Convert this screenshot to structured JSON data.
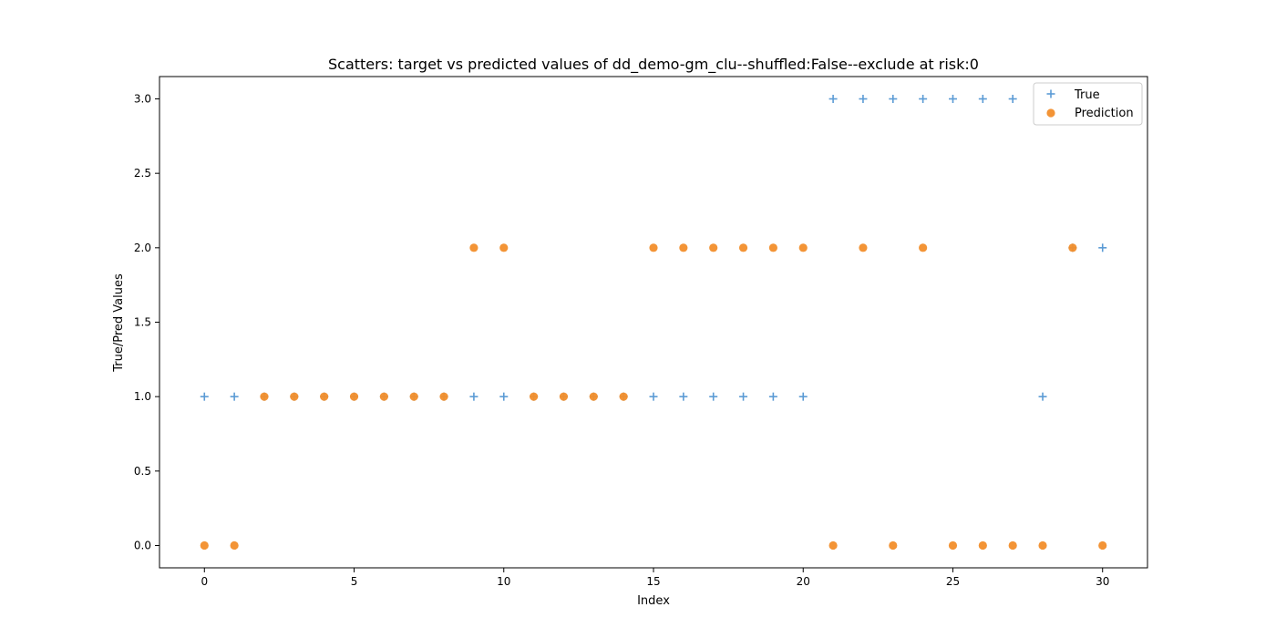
{
  "chart_data": {
    "type": "scatter",
    "title": "Scatters: target vs predicted values of dd_demo-gm_clu--shuffled:False--exclude at risk:0",
    "xlabel": "Index",
    "ylabel": "True/Pred Values",
    "xlim": [
      -1.5,
      31.5
    ],
    "ylim": [
      -0.15,
      3.15
    ],
    "x_ticks": [
      0,
      5,
      10,
      15,
      20,
      25,
      30
    ],
    "x_tick_labels": [
      "0",
      "5",
      "10",
      "15",
      "20",
      "25",
      "30"
    ],
    "y_ticks": [
      0.0,
      0.5,
      1.0,
      1.5,
      2.0,
      2.5,
      3.0
    ],
    "y_tick_labels": [
      "0.0",
      "0.5",
      "1.0",
      "1.5",
      "2.0",
      "2.5",
      "3.0"
    ],
    "grid": false,
    "legend_position": "top-right",
    "x": [
      0,
      1,
      2,
      3,
      4,
      5,
      6,
      7,
      8,
      9,
      10,
      11,
      12,
      13,
      14,
      15,
      16,
      17,
      18,
      19,
      20,
      21,
      22,
      23,
      24,
      25,
      26,
      27,
      28,
      29,
      30
    ],
    "series": [
      {
        "name": "True",
        "marker": "plus",
        "color": "#5b9bd5",
        "values": [
          1,
          1,
          1,
          1,
          1,
          1,
          1,
          1,
          1,
          1,
          1,
          1,
          1,
          1,
          1,
          1,
          1,
          1,
          1,
          1,
          1,
          3,
          3,
          3,
          3,
          3,
          3,
          3,
          1,
          2,
          2
        ]
      },
      {
        "name": "Prediction",
        "marker": "circle",
        "color": "#f28e2b",
        "values": [
          0,
          0,
          1,
          1,
          1,
          1,
          1,
          1,
          1,
          2,
          2,
          1,
          1,
          1,
          1,
          2,
          2,
          2,
          2,
          2,
          2,
          0,
          2,
          0,
          2,
          0,
          0,
          0,
          0,
          2,
          0
        ]
      }
    ]
  }
}
